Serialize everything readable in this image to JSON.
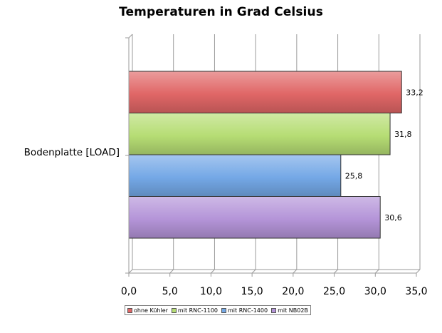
{
  "chart_data": {
    "type": "bar",
    "orientation": "horizontal",
    "title": "Temperaturen in Grad Celsius",
    "categories": [
      "Bodenplatte [LOAD]"
    ],
    "series": [
      {
        "name": "ohne Kühler",
        "values": [
          33.2
        ],
        "label": "33,2",
        "color": "#e06666"
      },
      {
        "name": "mit RNC-1100",
        "values": [
          31.8
        ],
        "label": "31,8",
        "color": "#b6dd74"
      },
      {
        "name": "mit RNC-1400",
        "values": [
          25.8
        ],
        "label": "25,8",
        "color": "#74a8e6"
      },
      {
        "name": "mit NB02B",
        "values": [
          30.6
        ],
        "label": "30,6",
        "color": "#b494d8"
      }
    ],
    "xlim": [
      0,
      35
    ],
    "x_ticks": [
      0,
      5,
      10,
      15,
      20,
      25,
      30,
      35
    ],
    "x_tick_labels": [
      "0,0",
      "5,0",
      "10,0",
      "15,0",
      "20,0",
      "25,0",
      "30,0",
      "35,0"
    ],
    "grid": true,
    "legend_position": "bottom"
  }
}
